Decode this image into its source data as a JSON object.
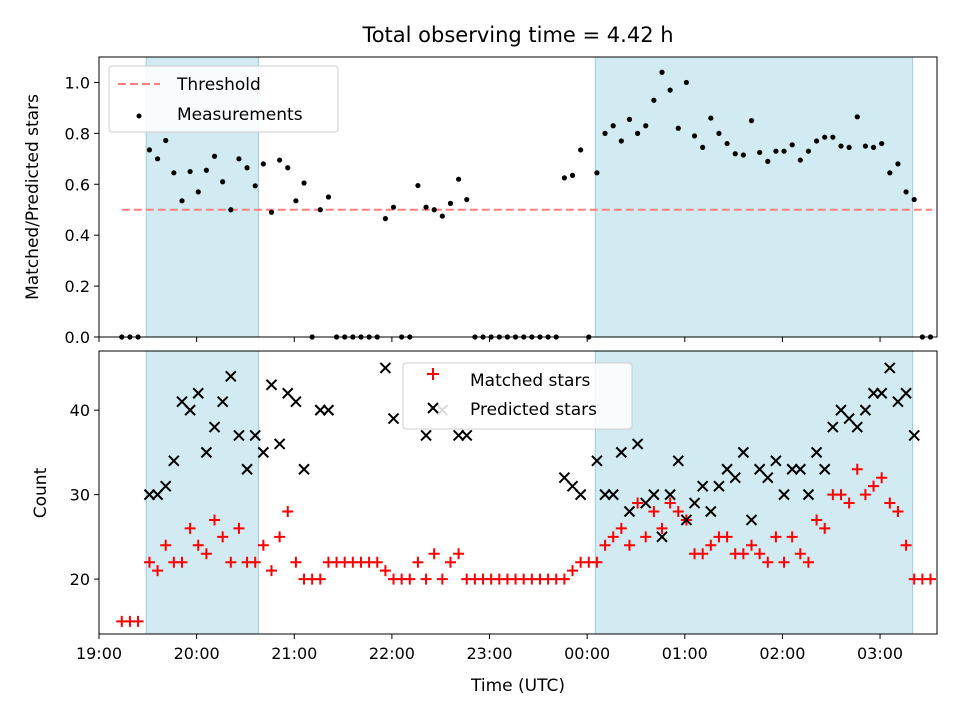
{
  "title": "Total observing time = 4.42 h",
  "colors": {
    "shade": "#add8e6",
    "threshold": "#ff7f7f",
    "measurement": "#000000",
    "matched": "#ff0000",
    "predicted": "#000000"
  },
  "chart_data": [
    {
      "type": "scatter",
      "ylabel": "Matched/Predicted stars",
      "xlim": [
        "19:00",
        "03:35"
      ],
      "ylim": [
        0,
        1.1
      ],
      "x_start_date_note": "",
      "yticks": [
        0.0,
        0.2,
        0.4,
        0.6,
        0.8,
        1.0
      ],
      "ytick_labels": [
        "0.0",
        "0.2",
        "0.4",
        "0.6",
        "0.8",
        "1.0"
      ],
      "shaded_intervals": [
        [
          "19:29",
          "20:38"
        ],
        [
          "00:05",
          "03:20"
        ]
      ],
      "legend": {
        "position": "top-left",
        "threshold_label": "Threshold",
        "measurements_label": "Measurements"
      },
      "threshold": {
        "y": 0.5,
        "x_from": "19:14",
        "x_to": "03:32"
      },
      "measurements": [
        [
          "19:14",
          0.0
        ],
        [
          "19:19",
          0.0
        ],
        [
          "19:24",
          0.0
        ],
        [
          "19:31",
          0.735
        ],
        [
          "19:36",
          0.7
        ],
        [
          "19:41",
          0.772
        ],
        [
          "19:46",
          0.645
        ],
        [
          "19:51",
          0.535
        ],
        [
          "19:56",
          0.65
        ],
        [
          "20:01",
          0.57
        ],
        [
          "20:06",
          0.655
        ],
        [
          "20:11",
          0.71
        ],
        [
          "20:16",
          0.61
        ],
        [
          "20:21",
          0.5
        ],
        [
          "20:26",
          0.7
        ],
        [
          "20:31",
          0.665
        ],
        [
          "20:36",
          0.594
        ],
        [
          "20:41",
          0.68
        ],
        [
          "20:46",
          0.49
        ],
        [
          "20:51",
          0.695
        ],
        [
          "20:56",
          0.665
        ],
        [
          "21:01",
          0.535
        ],
        [
          "21:06",
          0.605
        ],
        [
          "21:11",
          0.0
        ],
        [
          "21:16",
          0.5
        ],
        [
          "21:21",
          0.55
        ],
        [
          "21:26",
          0.0
        ],
        [
          "21:31",
          0.0
        ],
        [
          "21:36",
          0.0
        ],
        [
          "21:41",
          0.0
        ],
        [
          "21:46",
          0.0
        ],
        [
          "21:51",
          0.0
        ],
        [
          "21:56",
          0.465
        ],
        [
          "22:01",
          0.51
        ],
        [
          "22:06",
          0.0
        ],
        [
          "22:11",
          0.0
        ],
        [
          "22:16",
          0.595
        ],
        [
          "22:21",
          0.51
        ],
        [
          "22:26",
          0.5
        ],
        [
          "22:31",
          0.475
        ],
        [
          "22:36",
          0.525
        ],
        [
          "22:41",
          0.62
        ],
        [
          "22:46",
          0.54
        ],
        [
          "22:51",
          0.0
        ],
        [
          "22:56",
          0.0
        ],
        [
          "23:01",
          0.0
        ],
        [
          "23:06",
          0.0
        ],
        [
          "23:11",
          0.0
        ],
        [
          "23:16",
          0.0
        ],
        [
          "23:21",
          0.0
        ],
        [
          "23:26",
          0.0
        ],
        [
          "23:31",
          0.0
        ],
        [
          "23:36",
          0.0
        ],
        [
          "23:41",
          0.0
        ],
        [
          "23:46",
          0.625
        ],
        [
          "23:51",
          0.635
        ],
        [
          "23:56",
          0.735
        ],
        [
          "00:01",
          0.0
        ],
        [
          "00:06",
          0.645
        ],
        [
          "00:11",
          0.8
        ],
        [
          "00:16",
          0.83
        ],
        [
          "00:21",
          0.77
        ],
        [
          "00:26",
          0.855
        ],
        [
          "00:31",
          0.8
        ],
        [
          "00:36",
          0.83
        ],
        [
          "00:41",
          0.93
        ],
        [
          "00:46",
          1.04
        ],
        [
          "00:51",
          0.97
        ],
        [
          "00:56",
          0.82
        ],
        [
          "01:01",
          1.0
        ],
        [
          "01:06",
          0.79
        ],
        [
          "01:11",
          0.745
        ],
        [
          "01:16",
          0.86
        ],
        [
          "01:21",
          0.8
        ],
        [
          "01:26",
          0.76
        ],
        [
          "01:31",
          0.72
        ],
        [
          "01:36",
          0.715
        ],
        [
          "01:41",
          0.85
        ],
        [
          "01:46",
          0.725
        ],
        [
          "01:51",
          0.69
        ],
        [
          "01:56",
          0.73
        ],
        [
          "02:01",
          0.73
        ],
        [
          "02:06",
          0.755
        ],
        [
          "02:11",
          0.695
        ],
        [
          "02:16",
          0.73
        ],
        [
          "02:21",
          0.77
        ],
        [
          "02:26",
          0.785
        ],
        [
          "02:31",
          0.785
        ],
        [
          "02:36",
          0.75
        ],
        [
          "02:41",
          0.745
        ],
        [
          "02:46",
          0.865
        ],
        [
          "02:51",
          0.75
        ],
        [
          "02:56",
          0.745
        ],
        [
          "03:01",
          0.76
        ],
        [
          "03:06",
          0.645
        ],
        [
          "03:11",
          0.68
        ],
        [
          "03:16",
          0.57
        ],
        [
          "03:21",
          0.54
        ],
        [
          "03:26",
          0.0
        ],
        [
          "03:31",
          0.0
        ]
      ]
    },
    {
      "type": "scatter",
      "xlabel": "Time (UTC)",
      "ylabel": "Count",
      "xlim": [
        "19:00",
        "03:35"
      ],
      "ylim": [
        13.5,
        47
      ],
      "xticks": [
        "19:00",
        "20:00",
        "21:00",
        "22:00",
        "23:00",
        "00:00",
        "01:00",
        "02:00",
        "03:00"
      ],
      "yticks": [
        20,
        30,
        40
      ],
      "ytick_labels": [
        "20",
        "30",
        "40"
      ],
      "shaded_intervals": [
        [
          "19:29",
          "20:38"
        ],
        [
          "00:05",
          "03:20"
        ]
      ],
      "legend": {
        "position": "top-center",
        "matched_label": "Matched stars",
        "predicted_label": "Predicted stars"
      },
      "series": [
        {
          "name": "Matched stars",
          "points": [
            [
              "19:14",
              15
            ],
            [
              "19:19",
              15
            ],
            [
              "19:24",
              15
            ],
            [
              "19:31",
              22
            ],
            [
              "19:36",
              21
            ],
            [
              "19:41",
              24
            ],
            [
              "19:46",
              22
            ],
            [
              "19:51",
              22
            ],
            [
              "19:56",
              26
            ],
            [
              "20:01",
              24
            ],
            [
              "20:06",
              23
            ],
            [
              "20:11",
              27
            ],
            [
              "20:16",
              25
            ],
            [
              "20:21",
              22
            ],
            [
              "20:26",
              26
            ],
            [
              "20:31",
              22
            ],
            [
              "20:36",
              22
            ],
            [
              "20:41",
              24
            ],
            [
              "20:46",
              21
            ],
            [
              "20:51",
              25
            ],
            [
              "20:56",
              28
            ],
            [
              "21:01",
              22
            ],
            [
              "21:06",
              20
            ],
            [
              "21:11",
              20
            ],
            [
              "21:16",
              20
            ],
            [
              "21:21",
              22
            ],
            [
              "21:26",
              22
            ],
            [
              "21:31",
              22
            ],
            [
              "21:36",
              22
            ],
            [
              "21:41",
              22
            ],
            [
              "21:46",
              22
            ],
            [
              "21:51",
              22
            ],
            [
              "21:56",
              21
            ],
            [
              "22:01",
              20
            ],
            [
              "22:06",
              20
            ],
            [
              "22:11",
              20
            ],
            [
              "22:16",
              22
            ],
            [
              "22:21",
              20
            ],
            [
              "22:26",
              23
            ],
            [
              "22:31",
              20
            ],
            [
              "22:36",
              22
            ],
            [
              "22:41",
              23
            ],
            [
              "22:46",
              20
            ],
            [
              "22:51",
              20
            ],
            [
              "22:56",
              20
            ],
            [
              "23:01",
              20
            ],
            [
              "23:06",
              20
            ],
            [
              "23:11",
              20
            ],
            [
              "23:16",
              20
            ],
            [
              "23:21",
              20
            ],
            [
              "23:26",
              20
            ],
            [
              "23:31",
              20
            ],
            [
              "23:36",
              20
            ],
            [
              "23:41",
              20
            ],
            [
              "23:46",
              20
            ],
            [
              "23:51",
              21
            ],
            [
              "23:56",
              22
            ],
            [
              "00:01",
              22
            ],
            [
              "00:06",
              22
            ],
            [
              "00:11",
              24
            ],
            [
              "00:16",
              25
            ],
            [
              "00:21",
              26
            ],
            [
              "00:26",
              24
            ],
            [
              "00:31",
              29
            ],
            [
              "00:36",
              25
            ],
            [
              "00:41",
              28
            ],
            [
              "00:46",
              26
            ],
            [
              "00:51",
              29
            ],
            [
              "00:56",
              28
            ],
            [
              "01:01",
              27
            ],
            [
              "01:06",
              23
            ],
            [
              "01:11",
              23
            ],
            [
              "01:16",
              24
            ],
            [
              "01:21",
              25
            ],
            [
              "01:26",
              25
            ],
            [
              "01:31",
              23
            ],
            [
              "01:36",
              23
            ],
            [
              "01:41",
              24
            ],
            [
              "01:46",
              23
            ],
            [
              "01:51",
              22
            ],
            [
              "01:56",
              25
            ],
            [
              "02:01",
              22
            ],
            [
              "02:06",
              25
            ],
            [
              "02:11",
              23
            ],
            [
              "02:16",
              22
            ],
            [
              "02:21",
              27
            ],
            [
              "02:26",
              26
            ],
            [
              "02:31",
              30
            ],
            [
              "02:36",
              30
            ],
            [
              "02:41",
              29
            ],
            [
              "02:46",
              33
            ],
            [
              "02:51",
              30
            ],
            [
              "02:56",
              31
            ],
            [
              "03:01",
              32
            ],
            [
              "03:06",
              29
            ],
            [
              "03:11",
              28
            ],
            [
              "03:16",
              24
            ],
            [
              "03:21",
              20
            ],
            [
              "03:26",
              20
            ],
            [
              "03:31",
              20
            ]
          ]
        },
        {
          "name": "Predicted stars",
          "points": [
            [
              "19:31",
              30
            ],
            [
              "19:36",
              30
            ],
            [
              "19:41",
              31
            ],
            [
              "19:46",
              34
            ],
            [
              "19:51",
              41
            ],
            [
              "19:56",
              40
            ],
            [
              "20:01",
              42
            ],
            [
              "20:06",
              35
            ],
            [
              "20:11",
              38
            ],
            [
              "20:16",
              41
            ],
            [
              "20:21",
              44
            ],
            [
              "20:26",
              37
            ],
            [
              "20:31",
              33
            ],
            [
              "20:36",
              37
            ],
            [
              "20:41",
              35
            ],
            [
              "20:46",
              43
            ],
            [
              "20:51",
              36
            ],
            [
              "20:56",
              42
            ],
            [
              "21:01",
              41
            ],
            [
              "21:06",
              33
            ],
            [
              "21:16",
              40
            ],
            [
              "21:21",
              40
            ],
            [
              "21:56",
              45
            ],
            [
              "22:01",
              39
            ],
            [
              "22:21",
              37
            ],
            [
              "22:31",
              40
            ],
            [
              "22:41",
              37
            ],
            [
              "22:46",
              37
            ],
            [
              "23:46",
              32
            ],
            [
              "23:51",
              31
            ],
            [
              "23:56",
              30
            ],
            [
              "00:06",
              34
            ],
            [
              "00:11",
              30
            ],
            [
              "00:16",
              30
            ],
            [
              "00:21",
              35
            ],
            [
              "00:26",
              28
            ],
            [
              "00:31",
              36
            ],
            [
              "00:36",
              29
            ],
            [
              "00:41",
              30
            ],
            [
              "00:46",
              25
            ],
            [
              "00:51",
              30
            ],
            [
              "00:56",
              34
            ],
            [
              "01:01",
              27
            ],
            [
              "01:06",
              29
            ],
            [
              "01:11",
              31
            ],
            [
              "01:16",
              28
            ],
            [
              "01:21",
              31
            ],
            [
              "01:26",
              33
            ],
            [
              "01:31",
              32
            ],
            [
              "01:36",
              35
            ],
            [
              "01:41",
              27
            ],
            [
              "01:46",
              33
            ],
            [
              "01:51",
              32
            ],
            [
              "01:56",
              34
            ],
            [
              "02:01",
              30
            ],
            [
              "02:06",
              33
            ],
            [
              "02:11",
              33
            ],
            [
              "02:16",
              30
            ],
            [
              "02:21",
              35
            ],
            [
              "02:26",
              33
            ],
            [
              "02:31",
              38
            ],
            [
              "02:36",
              40
            ],
            [
              "02:41",
              39
            ],
            [
              "02:46",
              38
            ],
            [
              "02:51",
              40
            ],
            [
              "02:56",
              42
            ],
            [
              "03:01",
              42
            ],
            [
              "03:06",
              45
            ],
            [
              "03:11",
              41
            ],
            [
              "03:16",
              42
            ],
            [
              "03:21",
              37
            ]
          ]
        }
      ]
    }
  ]
}
